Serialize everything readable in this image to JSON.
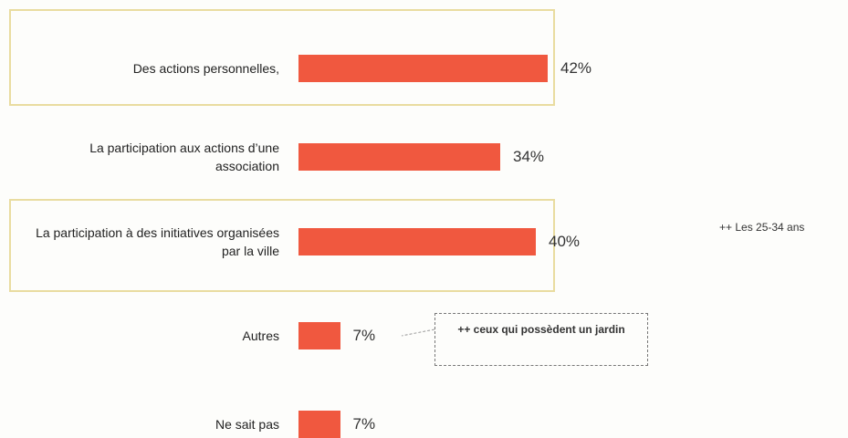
{
  "chart_data": {
    "type": "bar",
    "orientation": "horizontal",
    "categories": [
      "Des actions personnelles,",
      "La participation aux actions d’une association",
      "La participation à des initiatives organisées par la ville",
      "Autres",
      "Ne sait pas"
    ],
    "values": [
      42,
      34,
      40,
      7,
      7
    ],
    "value_labels": [
      "42%",
      "34%",
      "40%",
      "7%",
      "7%"
    ],
    "color": "#f0583f",
    "annotations": [
      "++ Les 25-34 ans",
      "++ ceux qui possèdent un jardin"
    ]
  }
}
